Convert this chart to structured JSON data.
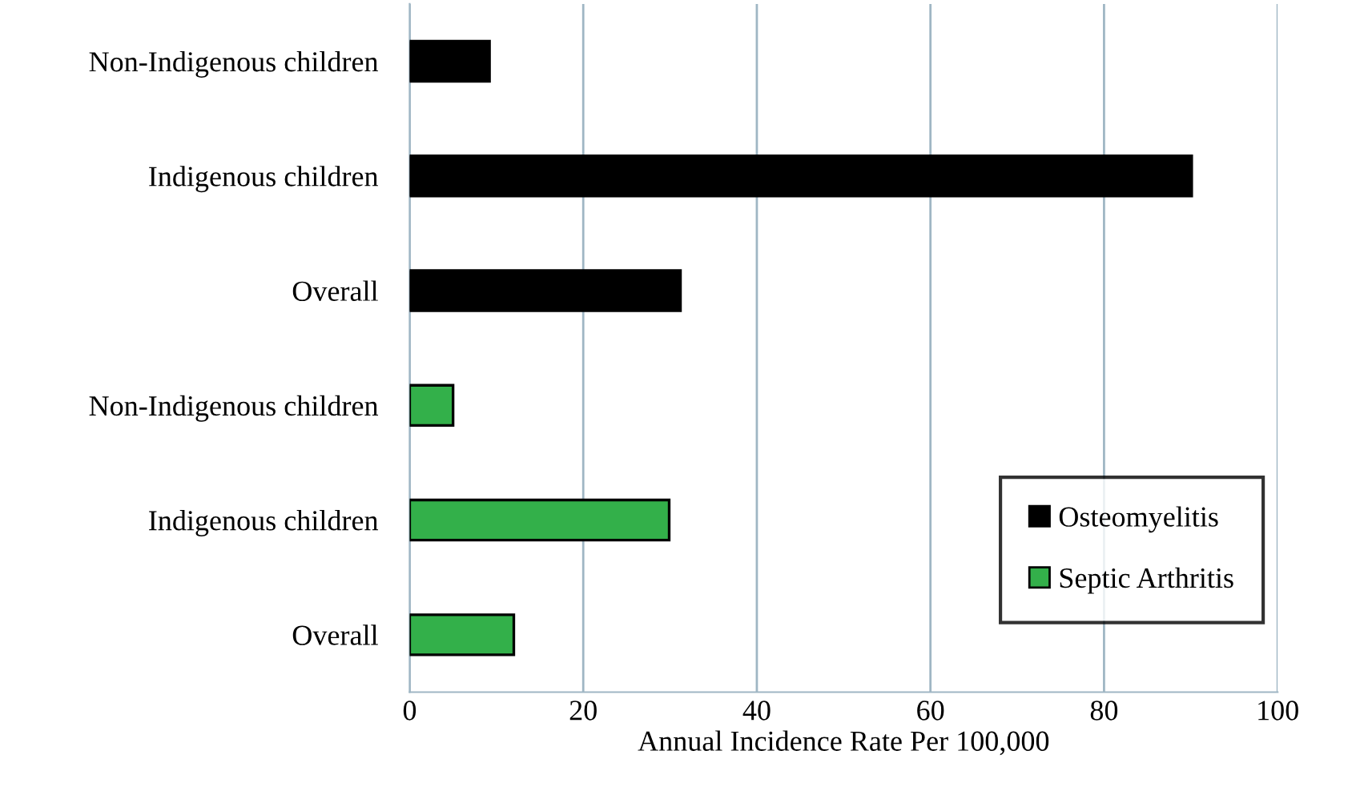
{
  "chart_data": {
    "type": "bar",
    "orientation": "horizontal",
    "xlabel": "Annual Incidence Rate Per 100,000",
    "categories": [
      "Non-Indigenous children",
      "Indigenous children",
      "Overall",
      "Non-Indigenous children",
      "Indigenous children",
      "Overall"
    ],
    "series": [
      {
        "name": "Osteomyelitis",
        "color": "#000000",
        "values": [
          9.2,
          90.1,
          31.2,
          null,
          null,
          null
        ]
      },
      {
        "name": "Septic Arthritis",
        "color": "#33b04a",
        "values": [
          null,
          null,
          null,
          5.0,
          29.9,
          12.0
        ]
      }
    ],
    "xlim": [
      0,
      100
    ],
    "xticks": [
      0,
      20,
      40,
      60,
      80,
      100
    ],
    "grid": "x",
    "legend": "bottom right"
  }
}
